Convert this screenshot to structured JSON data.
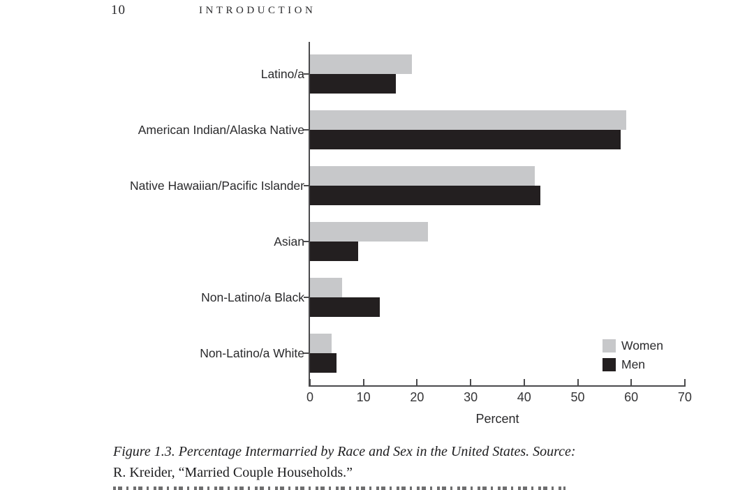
{
  "page": {
    "page_number": "10",
    "running_head": "INTRODUCTION"
  },
  "chart_data": {
    "type": "bar",
    "orientation": "horizontal",
    "categories": [
      "Latino/a",
      "American Indian/Alaska Native",
      "Native Hawaiian/Pacific Islander",
      "Asian",
      "Non-Latino/a Black",
      "Non-Latino/a White"
    ],
    "series": [
      {
        "name": "Women",
        "color": "#c7c8ca",
        "values": [
          19,
          59,
          42,
          22,
          6,
          4
        ]
      },
      {
        "name": "Men",
        "color": "#231f20",
        "values": [
          16,
          58,
          43,
          9,
          13,
          5
        ]
      }
    ],
    "xlabel": "Percent",
    "xlim": [
      0,
      70
    ],
    "xticks": [
      0,
      10,
      20,
      30,
      40,
      50,
      60,
      70
    ],
    "legend_position": "lower right",
    "grid": false,
    "axis_color": "#4a4a4c"
  },
  "caption": {
    "line1": "Figure 1.3.  Percentage Intermarried by Race and Sex in the United States. Source:",
    "line2": "R. Kreider, “Married Couple Households.”"
  }
}
